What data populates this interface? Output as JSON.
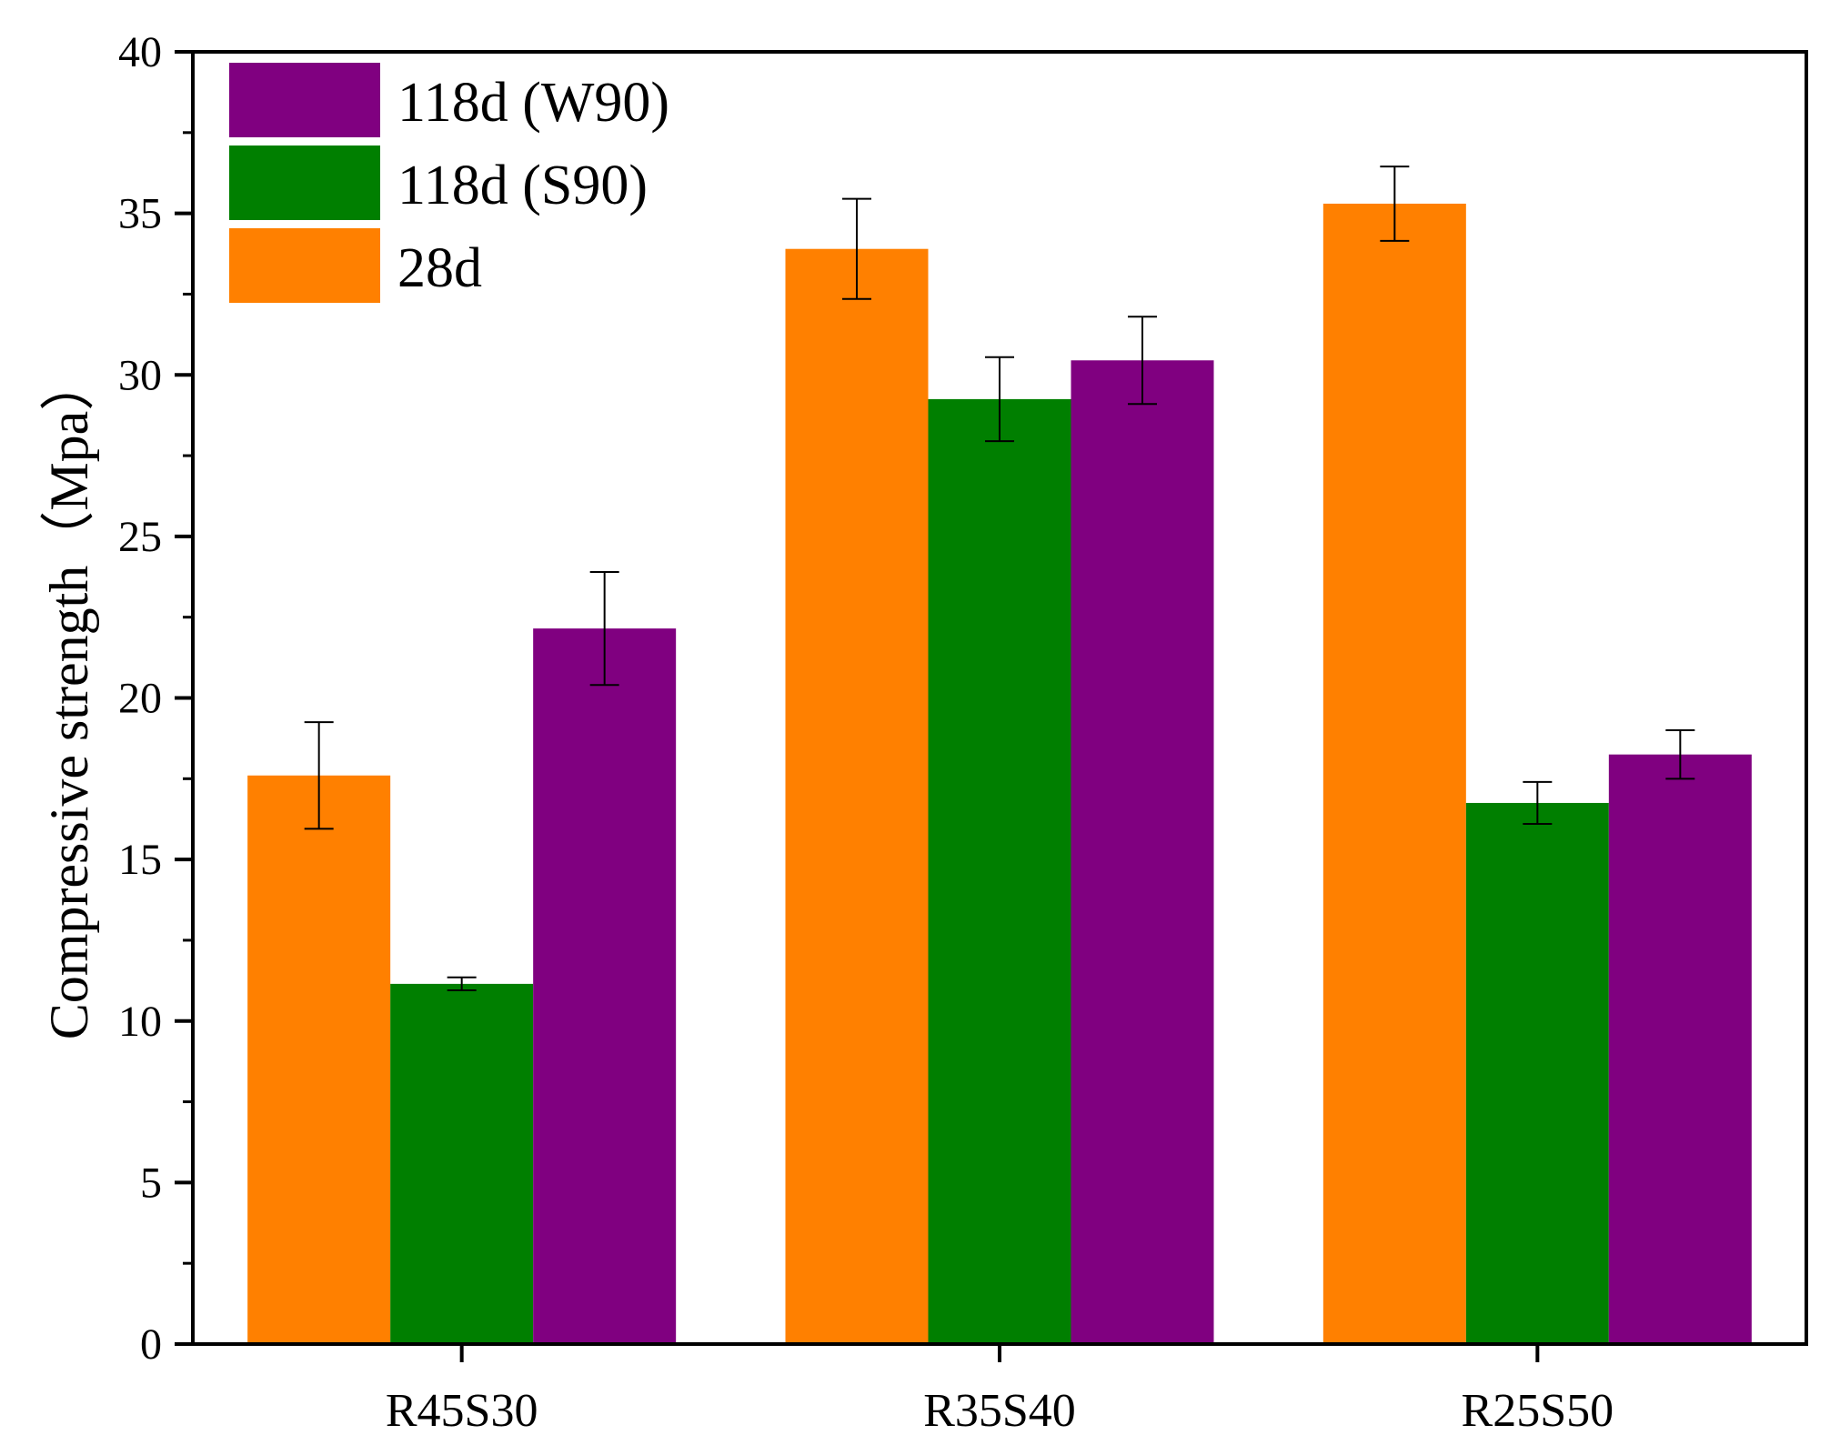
{
  "chart_data": {
    "type": "bar",
    "title": "",
    "xlabel": "",
    "ylabel": "Compressive strength（Mpa）",
    "ylim": [
      0,
      40
    ],
    "yticks": [
      0,
      5,
      10,
      15,
      20,
      25,
      30,
      35,
      40
    ],
    "yticks_minor_step": 2.5,
    "grid": false,
    "legend_position": "top-left",
    "categories": [
      "R45S30",
      "R35S40",
      "R25S50"
    ],
    "series": [
      {
        "name": "28d",
        "color": "#FF8000",
        "values": [
          17.6,
          33.9,
          35.3
        ],
        "errors": [
          1.65,
          1.55,
          1.15
        ]
      },
      {
        "name": "118d (S90)",
        "color": "#007F00",
        "values": [
          11.15,
          29.25,
          16.75
        ],
        "errors": [
          0.2,
          1.3,
          0.65
        ]
      },
      {
        "name": "118d (W90)",
        "color": "#800080",
        "values": [
          22.15,
          30.45,
          18.25
        ],
        "errors": [
          1.75,
          1.35,
          0.75
        ]
      }
    ],
    "legend_order": [
      "118d (W90)",
      "118d (S90)",
      "28d"
    ]
  }
}
